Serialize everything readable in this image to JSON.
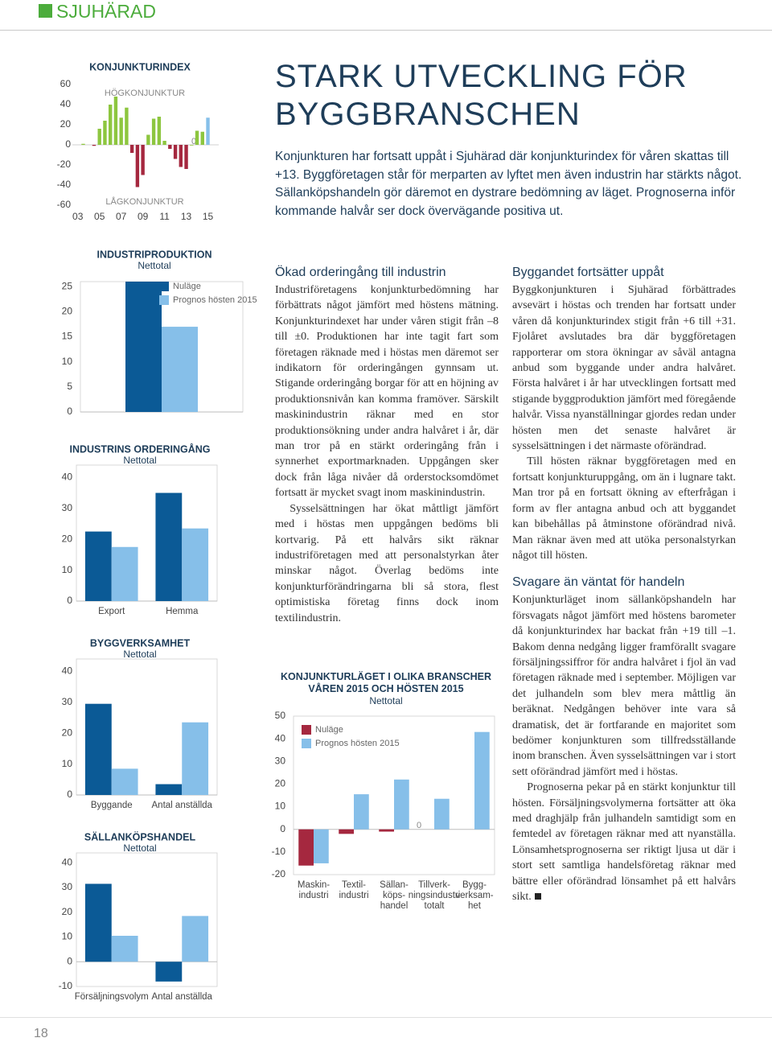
{
  "header": {
    "title": "SJUHÄRAD"
  },
  "chart_data": [
    {
      "type": "bar",
      "title": "KONJUNKTURINDEX",
      "annotations": [
        "HÖGKONJUNKTUR",
        "LÅGKONJUNKTUR",
        "0"
      ],
      "x": [
        2003.5,
        2004.5,
        2005,
        2005.5,
        2006,
        2006.5,
        2007,
        2007.5,
        2008,
        2008.5,
        2009,
        2009.5,
        2010,
        2010.5,
        2011,
        2011.5,
        2012,
        2012.5,
        2013,
        2013.5,
        2014,
        2014.5
      ],
      "values": [
        1,
        -1,
        16,
        24,
        40,
        48,
        27,
        37,
        -8,
        -42,
        -30,
        10,
        26,
        28,
        4,
        -4,
        -14,
        -22,
        -24,
        0,
        14,
        13
      ],
      "forecast_x": 2015,
      "forecast_value": 27,
      "forecast_color": "#86bfe9",
      "color_positive": "#8dc63f",
      "color_negative": "#a5283f",
      "xlim": [
        2002.5,
        2016
      ],
      "xticks": [
        {
          "value": 2003,
          "label": "03"
        },
        {
          "value": 2005,
          "label": "05"
        },
        {
          "value": 2007,
          "label": "07"
        },
        {
          "value": 2009,
          "label": "09"
        },
        {
          "value": 2011,
          "label": "11"
        },
        {
          "value": 2013,
          "label": "13"
        },
        {
          "value": 2015,
          "label": "15"
        }
      ],
      "ylim": [
        -60,
        60
      ],
      "yticks": [
        -60,
        -40,
        -20,
        0,
        20,
        40,
        60
      ]
    },
    {
      "type": "grouped_bar",
      "title": "INDUSTRIPRODUKTION",
      "subtitle": "Nettotal",
      "categories": [
        null
      ],
      "series": [
        {
          "name": "Nuläge",
          "color": "#0b5a96",
          "values": [
            26
          ]
        },
        {
          "name": "Prognos hösten 2015",
          "color": "#86bfe9",
          "values": [
            17
          ]
        }
      ],
      "ylim": [
        0,
        26
      ],
      "yticks": [
        0,
        5,
        10,
        15,
        20,
        25
      ]
    },
    {
      "type": "grouped_bar",
      "title": "INDUSTRINS ORDERINGÅNG",
      "subtitle": "Nettotal",
      "categories": [
        "Export",
        "Hemma"
      ],
      "series": [
        {
          "color": "#0b5a96",
          "values": [
            22.5,
            35
          ]
        },
        {
          "color": "#86bfe9",
          "values": [
            17.5,
            23.5
          ]
        }
      ],
      "ylim": [
        0,
        44
      ],
      "yticks": [
        0,
        10,
        20,
        30,
        40
      ]
    },
    {
      "type": "grouped_bar",
      "title": "BYGGVERKSAMHET",
      "subtitle": "Nettotal",
      "categories": [
        "Byggande",
        "Antal anställda"
      ],
      "series": [
        {
          "color": "#0b5a96",
          "values": [
            29.5,
            3.5
          ]
        },
        {
          "color": "#86bfe9",
          "values": [
            8.5,
            23.5
          ]
        }
      ],
      "ylim": [
        0,
        44
      ],
      "yticks": [
        0,
        10,
        20,
        30,
        40
      ]
    },
    {
      "type": "grouped_bar",
      "title": "SÄLLANKÖPSHANDEL",
      "subtitle": "Nettotal",
      "categories": [
        "Försäljningsvolym",
        "Antal anställda"
      ],
      "series": [
        {
          "color": "#0b5a96",
          "values": [
            31.5,
            -8
          ]
        },
        {
          "color": "#86bfe9",
          "values": [
            10.5,
            18.5
          ]
        }
      ],
      "ylim": [
        -10,
        44
      ],
      "yticks": [
        -10,
        0,
        10,
        20,
        30,
        40
      ]
    },
    {
      "type": "grouped_bar",
      "title": "KONJUNKTURLÄGET I OLIKA BRANSCHER\nVÅREN 2015 OCH HÖSTEN 2015",
      "subtitle": "Nettotal",
      "annotations": [
        "0"
      ],
      "categories": [
        "Maskin-\nindustri",
        "Textil-\nindustri",
        "Sällan-\nköps-\nhandel",
        "Tillverk-\nningsindustri\ntotalt",
        "Bygg-\nverksam-\nhet"
      ],
      "series": [
        {
          "name": "Nuläge",
          "color": "#a5283f",
          "values": [
            -16,
            -2,
            -1,
            0,
            null
          ]
        },
        {
          "name": "Prognos hösten 2015",
          "color": "#86bfe9",
          "values": [
            -15,
            15.5,
            22,
            13.5,
            43
          ]
        }
      ],
      "ylim": [
        -20,
        50
      ],
      "yticks": [
        -20,
        -10,
        0,
        10,
        20,
        30,
        40,
        50
      ]
    }
  ],
  "article": {
    "headline": "STARK UTVECKLING FÖR BYGGBRANSCHEN",
    "lead": "Konjunkturen har fortsatt uppåt i Sjuhärad där konjunkturindex för våren skattas till +13. Byggföretagen står för merparten av lyftet men även industrin har stärkts något. Sällanköpshandeln gör däremot en dystrare bedömning av läget. Prognoserna inför kommande halvår ser dock övervägande positiva ut.",
    "sections": [
      {
        "heading": "Ökad orderingång till industrin",
        "paragraphs": [
          "Industriföretagens konjunkturbedömning har förbättrats något jämfört med höstens mätning. Konjunkturindexet har under våren stigit från –8 till ±0. Produktionen har inte tagit fart som företagen räknade med i höstas men däremot ser indikatorn för orderingången gynnsam ut. Stigande orderingång borgar för att en höjning av produktionsnivån kan komma framöver. Särskilt maskinindustrin räknar med en stor produktionsökning under andra halvåret i år, där man tror på en stärkt orderingång från i synnerhet exportmarknaden. Uppgången sker dock från låga nivåer då orderstocksomdömet fortsatt är mycket svagt inom maskinindustrin.",
          "Sysselsättningen har ökat måttligt jämfört med i höstas men uppgången bedöms bli kortvarig. På ett halvårs sikt räknar industriföretagen med att personalstyrkan åter minskar något. Överlag bedöms inte konjunkturförändringarna bli så stora, flest optimistiska företag finns dock inom textilindustrin."
        ]
      },
      {
        "heading": "Byggandet fortsätter uppåt",
        "paragraphs": [
          "Byggkonjunkturen i Sjuhärad förbättrades avsevärt i höstas och trenden har fortsatt under våren då konjunkturindex stigit från +6 till +31. Fjolåret avslutades bra där byggföretagen rapporterar om stora ökningar av såväl antagna anbud som byggande under andra halvåret. Första halvåret i år har utvecklingen fortsatt med stigande byggproduktion jämfört med föregående halvår. Vissa nyanställningar gjordes redan under hösten men det senaste halvåret är sysselsättningen i det närmaste oförändrad.",
          "Till hösten räknar byggföretagen med en fortsatt konjunkturuppgång, om än i lugnare takt. Man tror på en fortsatt ökning av efterfrågan i form av fler antagna anbud och att byggandet kan bibehållas på åtminstone oförändrad nivå. Man räknar även med att utöka personalstyrkan något till hösten."
        ]
      },
      {
        "heading": "Svagare än väntat för handeln",
        "paragraphs": [
          "Konjunkturläget inom sällanköpshandeln har försvagats något jämfört med höstens barometer då konjunkturindex har backat från +19 till –1. Bakom denna nedgång ligger framförallt svagare försäljningssiffror för andra halvåret i fjol än vad företagen räknade med i september. Möjligen var det julhandeln som blev mera måttlig än beräknat. Nedgången behöver inte vara så dramatisk, det är fortfarande en majoritet som bedömer konjunkturen som tillfredsställande inom branschen. Även sysselsättningen var i stort sett oförändrad jämfört med i höstas.",
          "Prognoserna pekar på en stärkt konjunktur till hösten. Försäljningsvolymerna fortsätter att öka med draghjälp från julhandeln samtidigt som en femtedel av företagen räknar med att nyanställa. Lönsamhetsprognoserna ser riktigt ljusa ut där i stort sett samtliga handelsföretag räknar med bättre eller oförändrad lönsamhet på ett halvårs sikt."
        ]
      }
    ]
  },
  "page_number": "18"
}
